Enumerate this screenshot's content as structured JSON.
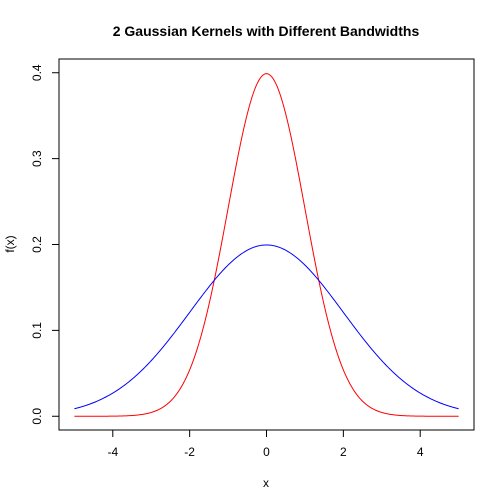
{
  "chart_data": {
    "type": "line",
    "title": "2 Gaussian Kernels with Different Bandwidths",
    "xlabel": "x",
    "ylabel": "f(x)",
    "xlim": [
      -5.4,
      5.4
    ],
    "ylim": [
      -0.016,
      0.416
    ],
    "xticks": [
      -4,
      -2,
      0,
      2,
      4
    ],
    "xtick_labels": [
      "-4",
      "-2",
      "0",
      "2",
      "4"
    ],
    "yticks": [
      0.0,
      0.1,
      0.2,
      0.3,
      0.4
    ],
    "ytick_labels": [
      "0.0",
      "0.1",
      "0.2",
      "0.3",
      "0.4"
    ],
    "grid": false,
    "legend": "none",
    "x_range": [
      -5,
      5
    ],
    "series": [
      {
        "mean": 0,
        "sd": 1,
        "color": "#ff0000"
      },
      {
        "mean": 0,
        "sd": 2,
        "color": "#0000ff"
      }
    ]
  }
}
